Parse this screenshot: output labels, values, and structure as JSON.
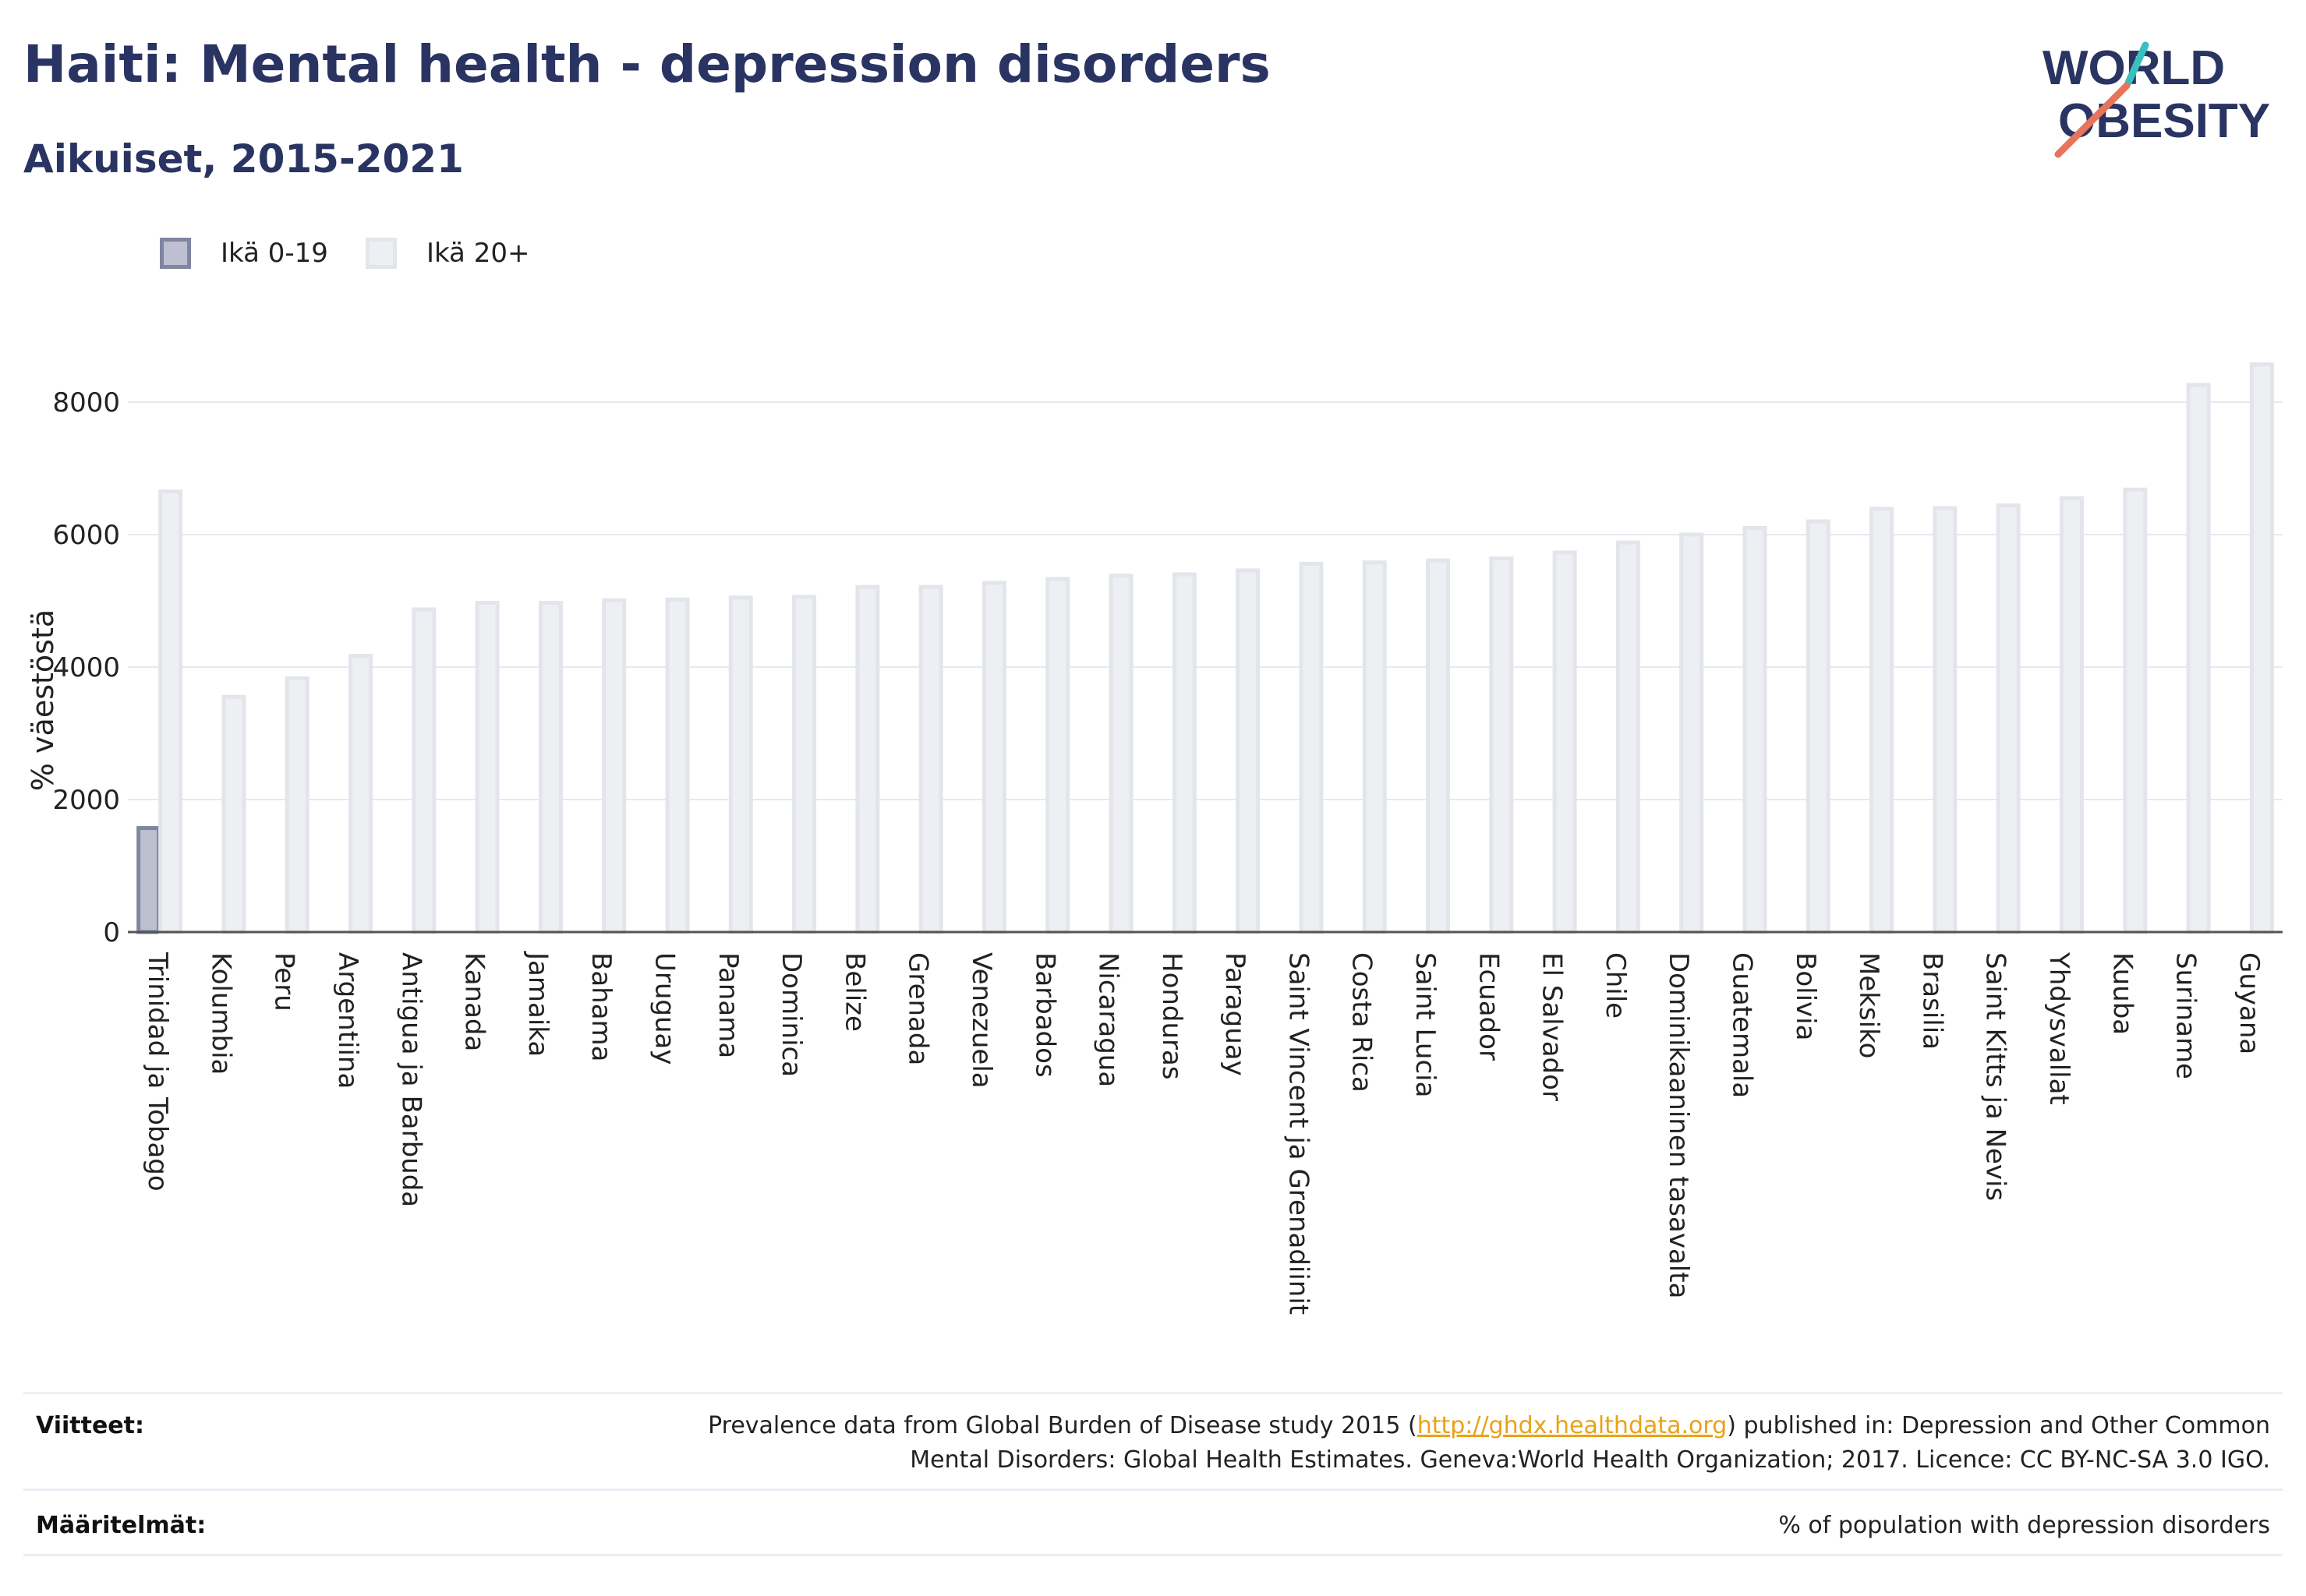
{
  "header": {
    "title": "Haiti: Mental health - depression disorders",
    "subtitle": "Aikuiset, 2015-2021"
  },
  "logo": {
    "line1": "WORLD",
    "line2": "OBESITY"
  },
  "legend": [
    {
      "label": "Ikä 0-19",
      "color": "#bcc0d0",
      "border": "#7f86a0"
    },
    {
      "label": "Ikä 20+",
      "color": "#eeeff3",
      "border": "#e3e5ec"
    }
  ],
  "chart_data": {
    "type": "bar",
    "ylabel": "% väestöstä",
    "ylim": [
      0,
      8800
    ],
    "yticks": [
      0,
      2000,
      4000,
      6000,
      8000
    ],
    "grid": true,
    "legend_position": "top-left",
    "categories": [
      "Trinidad ja Tobago",
      "Kolumbia",
      "Peru",
      "Argentiina",
      "Antigua ja Barbuda",
      "Kanada",
      "Jamaika",
      "Bahama",
      "Uruguay",
      "Panama",
      "Dominica",
      "Belize",
      "Grenada",
      "Venezuela",
      "Barbados",
      "Nicaragua",
      "Honduras",
      "Paraguay",
      "Saint Vincent ja Grenadiinit",
      "Costa Rica",
      "Saint Lucia",
      "Ecuador",
      "El Salvador",
      "Chile",
      "Dominikaaninen tasavalta",
      "Guatemala",
      "Bolivia",
      "Meksiko",
      "Brasilia",
      "Saint Kitts ja Nevis",
      "Yhdysvallat",
      "Kuuba",
      "Suriname",
      "Guyana"
    ],
    "series": [
      {
        "name": "Ikä 0-19",
        "color": "#bcc0d0",
        "border": "#7f86a0",
        "values": [
          1570,
          null,
          null,
          null,
          null,
          null,
          null,
          null,
          null,
          null,
          null,
          null,
          null,
          null,
          null,
          null,
          null,
          null,
          null,
          null,
          null,
          null,
          null,
          null,
          null,
          null,
          null,
          null,
          null,
          null,
          null,
          null,
          null,
          null
        ]
      },
      {
        "name": "Ikä 20+",
        "color": "#eeeff3",
        "border": "#e3e5ec",
        "values": [
          6650,
          3550,
          3830,
          4170,
          4870,
          4970,
          4970,
          5010,
          5020,
          5050,
          5060,
          5210,
          5210,
          5270,
          5330,
          5380,
          5400,
          5460,
          5560,
          5580,
          5610,
          5640,
          5730,
          5880,
          6000,
          6100,
          6200,
          6390,
          6400,
          6440,
          6550,
          6680,
          8260,
          8570
        ]
      }
    ]
  },
  "footer": {
    "sources_label": "Viitteet:",
    "sources_text_before": "Prevalence data from Global Burden of Disease study 2015 (",
    "sources_link": "http://ghdx.healthdata.org",
    "sources_text_after": ") published in: Depression and Other Common",
    "sources_line2": "Mental Disorders: Global Health Estimates. Geneva:World Health Organization; 2017. Licence: CC BY-NC-SA 3.0 IGO.",
    "definitions_label": "Määritelmät:",
    "definitions_text": "% of population with depression disorders"
  }
}
